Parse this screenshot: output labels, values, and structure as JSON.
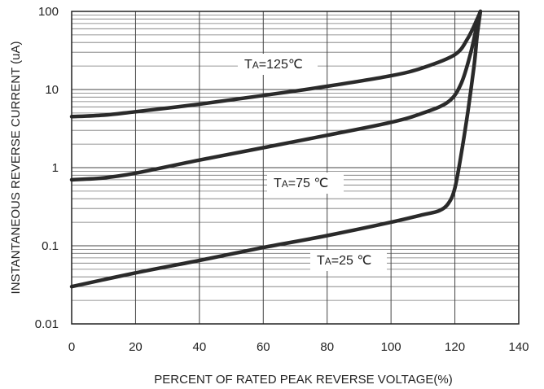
{
  "chart_data": {
    "type": "line",
    "title": "",
    "xlabel": "PERCENT OF RATED PEAK REVERSE VOLTAGE(%)",
    "ylabel": "INSTANTANEOUS REVERSE CURRENT (uA)",
    "xlim": [
      0,
      140
    ],
    "ylim": [
      0.01,
      100
    ],
    "yscale": "log",
    "grid": true,
    "x_ticks": [
      "0",
      "20",
      "40",
      "60",
      "80",
      "100",
      "120",
      "140"
    ],
    "y_ticks": [
      "0.01",
      "0.1",
      "1",
      "10",
      "100"
    ],
    "series": [
      {
        "name": "TA=125℃",
        "label_main": "T",
        "label_sub": "A",
        "label_rest": "=125℃",
        "x": [
          0,
          10,
          20,
          40,
          60,
          80,
          100,
          110,
          120,
          124,
          127,
          128
        ],
        "y": [
          4.5,
          4.7,
          5.2,
          6.5,
          8.4,
          11,
          15,
          19,
          28,
          45,
          80,
          100
        ]
      },
      {
        "name": "TA=75 ℃",
        "label_main": "T",
        "label_sub": "A",
        "label_rest": "=75 ℃",
        "x": [
          0,
          10,
          20,
          40,
          60,
          80,
          100,
          110,
          118,
          122,
          125,
          127,
          128
        ],
        "y": [
          0.7,
          0.74,
          0.85,
          1.25,
          1.8,
          2.6,
          3.8,
          5,
          7,
          12,
          30,
          70,
          100
        ]
      },
      {
        "name": "TA=25 ℃",
        "label_main": "T",
        "label_sub": "A",
        "label_rest": "=25 ℃",
        "x": [
          0,
          20,
          40,
          60,
          80,
          100,
          110,
          115,
          118,
          120,
          122,
          124,
          126,
          127,
          128
        ],
        "y": [
          0.03,
          0.045,
          0.065,
          0.095,
          0.135,
          0.2,
          0.25,
          0.28,
          0.35,
          0.55,
          1.5,
          5,
          20,
          50,
          100
        ]
      }
    ]
  }
}
